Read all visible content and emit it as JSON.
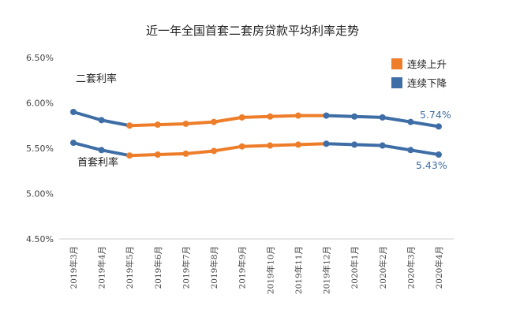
{
  "chart_data": {
    "type": "line",
    "title": "近一年全国首套二套房贷款平均利率走势",
    "categories": [
      "2019年3月",
      "2019年4月",
      "2019年5月",
      "2019年6月",
      "2019年7月",
      "2019年8月",
      "2019年9月",
      "2019年10月",
      "2019年11月",
      "2019年12月",
      "2020年1月",
      "2020年2月",
      "2020年3月",
      "2020年4月"
    ],
    "y_ticks": [
      "6.50%",
      "6.00%",
      "5.50%",
      "5.00%",
      "4.50%"
    ],
    "ylim": [
      4.5,
      6.5
    ],
    "series": [
      {
        "name": "二套利率",
        "values": [
          5.9,
          5.81,
          5.75,
          5.76,
          5.77,
          5.79,
          5.84,
          5.85,
          5.86,
          5.86,
          5.85,
          5.84,
          5.79,
          5.74
        ]
      },
      {
        "name": "首套利率",
        "values": [
          5.56,
          5.48,
          5.42,
          5.43,
          5.44,
          5.47,
          5.52,
          5.53,
          5.54,
          5.55,
          5.54,
          5.53,
          5.48,
          5.43
        ]
      }
    ],
    "trend_colors": {
      "up": "#ee7d2a",
      "down": "#3e6ea5"
    },
    "legend": [
      {
        "label": "连续上升",
        "color": "#ee7d2a"
      },
      {
        "label": "连续下降",
        "color": "#3e6ea5"
      }
    ],
    "end_labels": [
      "5.74%",
      "5.43%"
    ],
    "grid": false
  }
}
